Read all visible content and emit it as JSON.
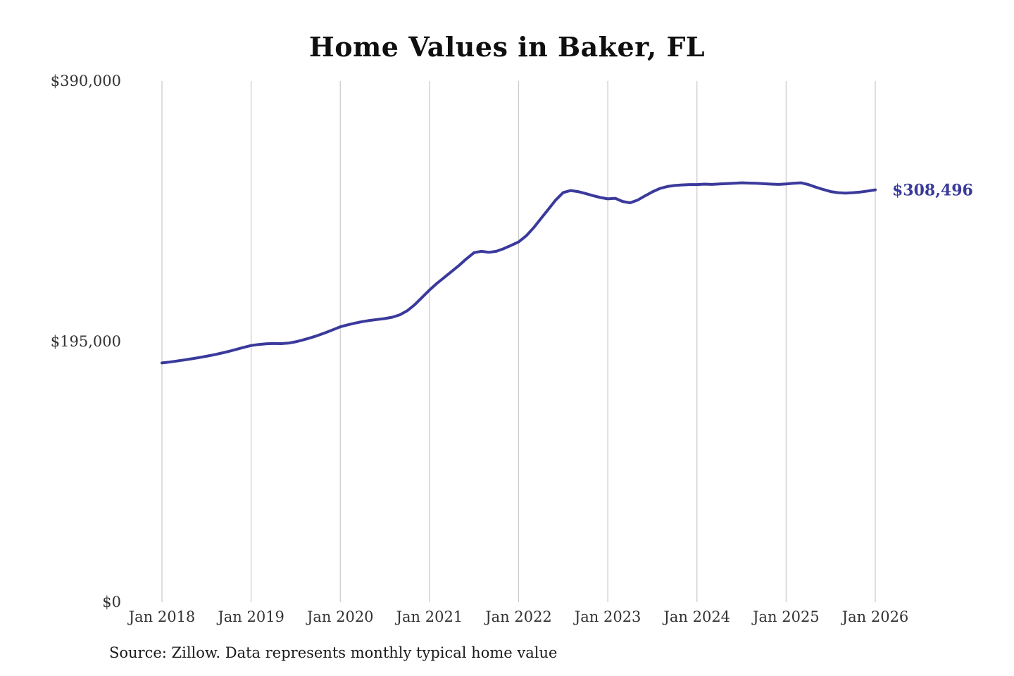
{
  "chart_data": {
    "type": "line",
    "title": "Home Values in Baker, FL",
    "xlabel": "",
    "ylabel": "",
    "ylim": [
      0,
      390000
    ],
    "grid": "vertical-only",
    "legend": "none",
    "grid_color": "#c9c9c9",
    "y_ticks": [
      {
        "value": 390000,
        "label": "$390,000"
      },
      {
        "value": 195000,
        "label": "$195,000"
      },
      {
        "value": 0,
        "label": "$0"
      }
    ],
    "x_ticks": [
      "Jan 2018",
      "Jan 2019",
      "Jan 2020",
      "Jan 2021",
      "Jan 2022",
      "Jan 2023",
      "Jan 2024",
      "Jan 2025",
      "Jan 2026"
    ],
    "series": [
      {
        "name": "Monthly typical home value",
        "color": "#3a3a9c",
        "end_label": "$308,496",
        "latest_value": 308496,
        "x_start": "Jan 2018",
        "x_step_months": 1,
        "values": [
          179000,
          179600,
          180400,
          181200,
          182100,
          183000,
          184000,
          185100,
          186300,
          187600,
          189100,
          190600,
          192000,
          192800,
          193300,
          193500,
          193400,
          193800,
          194800,
          196200,
          197800,
          199600,
          201600,
          203800,
          206000,
          207500,
          208800,
          209900,
          210800,
          211500,
          212200,
          213200,
          215000,
          218000,
          222500,
          228000,
          233500,
          238500,
          243000,
          247500,
          252000,
          257000,
          261500,
          262500,
          261800,
          262500,
          264500,
          267000,
          269500,
          274000,
          280000,
          287000,
          294000,
          301000,
          306500,
          308000,
          307200,
          305800,
          304200,
          302800,
          301800,
          302200,
          299800,
          298800,
          300800,
          304000,
          307000,
          309500,
          311000,
          311800,
          312200,
          312500,
          312500,
          312800,
          312600,
          312900,
          313200,
          313500,
          313800,
          313600,
          313400,
          313100,
          312800,
          312600,
          312900,
          313500,
          313800,
          312500,
          310500,
          308800,
          307200,
          306400,
          306100,
          306400,
          306900,
          307600,
          308496
        ]
      }
    ]
  },
  "source_note": "Source: Zillow. Data represents monthly typical home value"
}
